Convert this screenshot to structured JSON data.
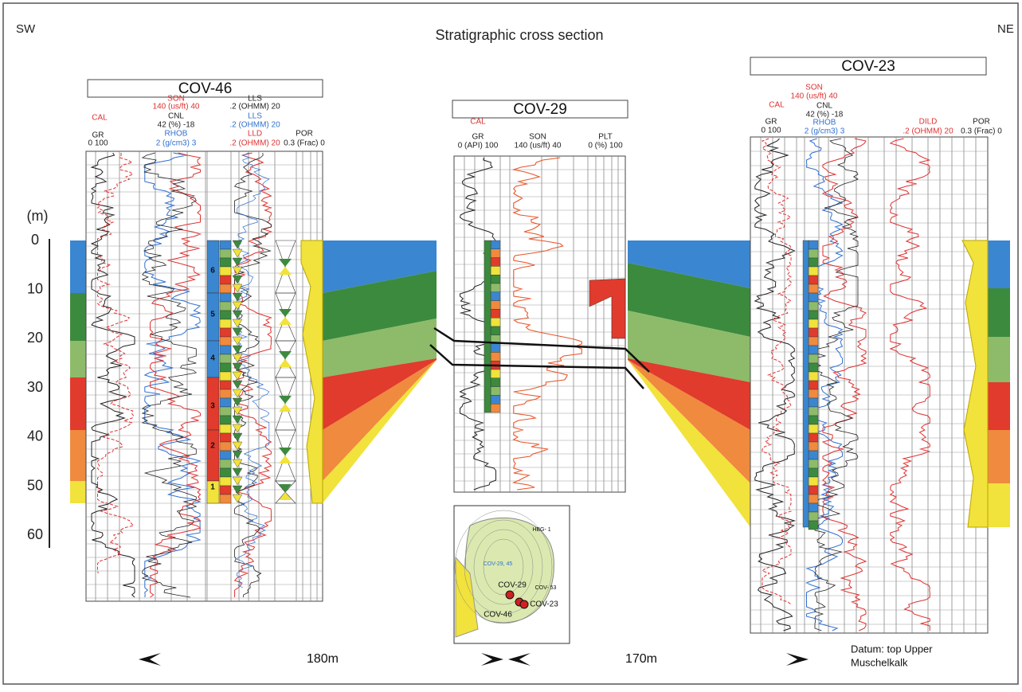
{
  "header": {
    "title": "Stratigraphic cross section",
    "left": "SW",
    "right": "NE"
  },
  "depth_scale": {
    "label": "(m)",
    "ticks": [
      0,
      10,
      20,
      30,
      40,
      50,
      60
    ]
  },
  "wells": [
    {
      "name": "COV-46",
      "headers": [
        {
          "text": "CAL",
          "color": "#e03030"
        },
        {
          "text": "SON",
          "color": "#e03030"
        },
        {
          "text": "140 (us/ft) 40",
          "color": "#e03030"
        },
        {
          "text": "CNL",
          "color": "#222222"
        },
        {
          "text": "42  (%)  -18",
          "color": "#222222"
        },
        {
          "text": "RHOB",
          "color": "#3070d0"
        },
        {
          "text": "2   (g/cm3)   3",
          "color": "#3070d0"
        },
        {
          "text": "GR",
          "color": "#222222"
        },
        {
          "text": "0    100",
          "color": "#222222"
        },
        {
          "text": "LLS",
          "color": "#222222"
        },
        {
          "text": ".2 (OHMM) 20",
          "color": "#222222"
        },
        {
          "text": "LLS",
          "color": "#3070d0"
        },
        {
          "text": ".2 (OHMM) 20",
          "color": "#3070d0"
        },
        {
          "text": "LLD",
          "color": "#e03030"
        },
        {
          "text": ".2 (OHMM) 20",
          "color": "#e03030"
        },
        {
          "text": "POR",
          "color": "#222222"
        },
        {
          "text": "0.3 (Frac) 0",
          "color": "#222222"
        }
      ],
      "units": [
        "6",
        "5",
        "4",
        "3",
        "2",
        "1"
      ]
    },
    {
      "name": "COV-29",
      "headers": [
        {
          "text": "CAL",
          "color": "#e03030"
        },
        {
          "text": "GR",
          "color": "#222222"
        },
        {
          "text": "0  (API)  100",
          "color": "#222222"
        },
        {
          "text": "SON",
          "color": "#222222"
        },
        {
          "text": "140   (us/ft)   40",
          "color": "#222222"
        },
        {
          "text": "PLT",
          "color": "#222222"
        },
        {
          "text": "0   (%)  100",
          "color": "#222222"
        }
      ]
    },
    {
      "name": "COV-23",
      "headers": [
        {
          "text": "SON",
          "color": "#e03030"
        },
        {
          "text": "140 (us/ft) 40",
          "color": "#e03030"
        },
        {
          "text": "CAL",
          "color": "#e03030"
        },
        {
          "text": "CNL",
          "color": "#222222"
        },
        {
          "text": "42  (%)  -18",
          "color": "#222222"
        },
        {
          "text": "GR",
          "color": "#222222"
        },
        {
          "text": "0    100",
          "color": "#222222"
        },
        {
          "text": "RHOB",
          "color": "#3070d0"
        },
        {
          "text": "2  (g/cm3)  3",
          "color": "#3070d0"
        },
        {
          "text": "DILD",
          "color": "#e03030"
        },
        {
          "text": ".2 (OHMM) 20",
          "color": "#e03030"
        },
        {
          "text": "POR",
          "color": "#222222"
        },
        {
          "text": "0.3 (Frac) 0",
          "color": "#222222"
        }
      ]
    }
  ],
  "map": {
    "labels": [
      "HBG- 1",
      "COV-29, 45",
      "COV-29",
      "COV- 53",
      "COV-23",
      "COV-46"
    ]
  },
  "distances": [
    "180m",
    "170m"
  ],
  "datum": [
    "Datum: top Upper",
    "Muschelkalk"
  ]
}
